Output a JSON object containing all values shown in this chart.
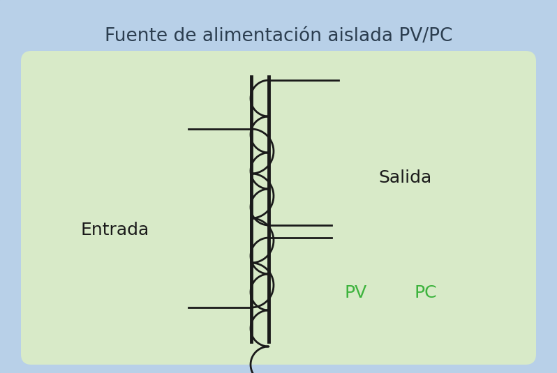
{
  "title": "Fuente de alimentación aislada PV/PC",
  "title_fontsize": 19,
  "title_color": "#2c3e50",
  "bg_color": "#b8d0e8",
  "inner_bg_color": "#d8eac8",
  "label_entrada": "Entrada",
  "label_salida": "Salida",
  "label_pv": "PV",
  "label_pc": "PC",
  "label_color": "#1a1a1a",
  "pv_pc_color": "#3db33d",
  "coil_color": "#1a1a1a",
  "core_color": "#1a1a1a",
  "coil_linewidth": 2.0,
  "core_linewidth": 3.5,
  "outer_border_color": "#8ab0d0",
  "inner_border_color": "#a0c890"
}
